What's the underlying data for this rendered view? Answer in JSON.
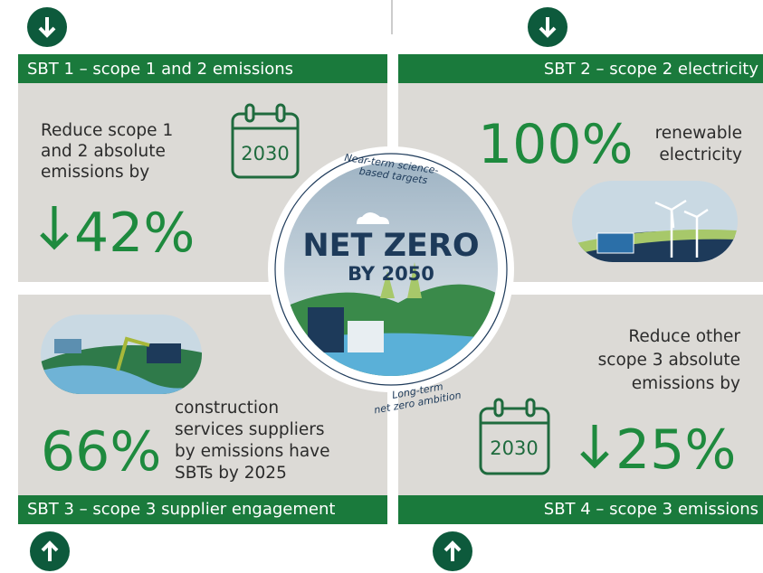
{
  "panels": [
    {
      "header": "SBT 1 – scope 1 and 2 emissions",
      "text": [
        "Reduce scope 1",
        "and 2 absolute",
        "emissions by"
      ],
      "year": "2030",
      "figure": "42%"
    },
    {
      "header": "SBT 2 – scope 2 electricity",
      "text": [
        "renewable",
        "electricity"
      ],
      "figure": "100%"
    },
    {
      "header": "SBT 3 – scope 3 supplier engagement",
      "text": [
        "construction",
        "services suppliers",
        "by emissions have",
        "SBTs by 2025"
      ],
      "figure": "66%"
    },
    {
      "header": "SBT 4 – scope 3 emissions",
      "text": [
        "Reduce other",
        "scope 3 absolute",
        "emissions by"
      ],
      "year": "2030",
      "figure": "25%"
    }
  ],
  "center": {
    "title": "NET ZERO",
    "subtitle": "BY 2050",
    "top_label": [
      "Near-term science-",
      "based targets"
    ],
    "bottom_label": [
      "Long-term",
      "net zero ambition"
    ]
  }
}
